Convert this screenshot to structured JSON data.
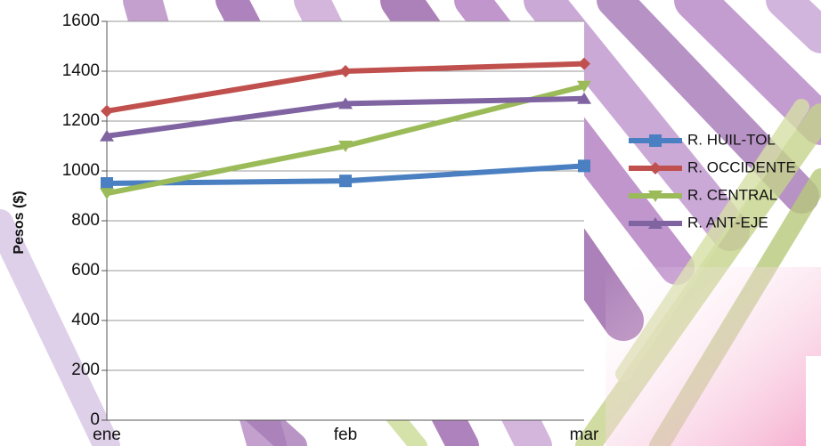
{
  "chart_data": {
    "type": "line",
    "categories": [
      "ene",
      "feb",
      "mar"
    ],
    "ylabel": "Pesos ($)",
    "xlabel": "",
    "ylim": [
      0,
      1600
    ],
    "yticks": [
      0,
      200,
      400,
      600,
      800,
      1000,
      1200,
      1400,
      1600
    ],
    "grid": true,
    "legend_position": "right",
    "series": [
      {
        "name": "R. HUIL-TOL",
        "values": [
          950,
          960,
          1020
        ],
        "color": "#4a7fc1",
        "marker": "square"
      },
      {
        "name": "R. OCCIDENTE",
        "values": [
          1240,
          1400,
          1430
        ],
        "color": "#c0504d",
        "marker": "diamond"
      },
      {
        "name": "R. CENTRAL",
        "values": [
          910,
          1100,
          1340
        ],
        "color": "#9bbb59",
        "marker": "triangle-down"
      },
      {
        "name": "R. ANT-EJE",
        "values": [
          1140,
          1270,
          1290
        ],
        "color": "#8064a2",
        "marker": "triangle-up"
      }
    ]
  }
}
